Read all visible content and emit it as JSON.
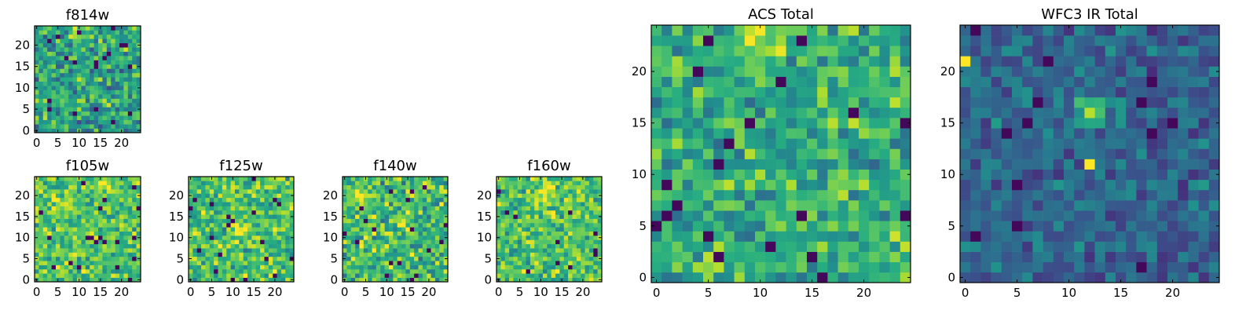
{
  "chart_data": [
    {
      "type": "heatmap",
      "title": "f814w",
      "colormap": "viridis",
      "grid_size": [
        25,
        25
      ],
      "xlim": [
        -0.5,
        24.5
      ],
      "ylim": [
        -0.5,
        24.5
      ],
      "xticks": [
        0,
        5,
        10,
        15,
        20
      ],
      "yticks": [
        0,
        5,
        10,
        15,
        20
      ],
      "seed": 11,
      "base": 0.58,
      "spread": 0.36,
      "hotspots": [
        {
          "x": 10,
          "y": 23,
          "r": 2,
          "amp": 0.3
        }
      ]
    },
    {
      "type": "heatmap",
      "title": "f105w",
      "colormap": "viridis",
      "grid_size": [
        25,
        25
      ],
      "xlim": [
        -0.5,
        24.5
      ],
      "ylim": [
        -0.5,
        24.5
      ],
      "xticks": [
        0,
        5,
        10,
        15,
        20
      ],
      "yticks": [
        0,
        5,
        10,
        15,
        20
      ],
      "seed": 23,
      "base": 0.72,
      "spread": 0.3,
      "hotspots": [
        {
          "x": 5,
          "y": 18,
          "r": 3,
          "amp": 0.2
        },
        {
          "x": 15,
          "y": 23,
          "r": 2,
          "amp": 0.2
        }
      ]
    },
    {
      "type": "heatmap",
      "title": "f125w",
      "colormap": "viridis",
      "grid_size": [
        25,
        25
      ],
      "xlim": [
        -0.5,
        24.5
      ],
      "ylim": [
        -0.5,
        24.5
      ],
      "xticks": [
        0,
        5,
        10,
        15,
        20
      ],
      "yticks": [
        0,
        5,
        10,
        15,
        20
      ],
      "seed": 37,
      "base": 0.7,
      "spread": 0.33,
      "hotspots": [
        {
          "x": 12,
          "y": 12,
          "r": 3,
          "amp": 0.18
        }
      ]
    },
    {
      "type": "heatmap",
      "title": "f140w",
      "colormap": "viridis",
      "grid_size": [
        25,
        25
      ],
      "xlim": [
        -0.5,
        24.5
      ],
      "ylim": [
        -0.5,
        24.5
      ],
      "xticks": [
        0,
        5,
        10,
        15,
        20
      ],
      "yticks": [
        0,
        5,
        10,
        15,
        20
      ],
      "seed": 41,
      "base": 0.68,
      "spread": 0.36,
      "hotspots": [
        {
          "x": 3,
          "y": 20,
          "r": 3,
          "amp": 0.2
        },
        {
          "x": 14,
          "y": 13,
          "r": 2,
          "amp": 0.2
        }
      ]
    },
    {
      "type": "heatmap",
      "title": "f160w",
      "colormap": "viridis",
      "grid_size": [
        25,
        25
      ],
      "xlim": [
        -0.5,
        24.5
      ],
      "ylim": [
        -0.5,
        24.5
      ],
      "xticks": [
        0,
        5,
        10,
        15,
        20
      ],
      "yticks": [
        0,
        5,
        10,
        15,
        20
      ],
      "seed": 53,
      "base": 0.72,
      "spread": 0.32,
      "hotspots": [
        {
          "x": 11,
          "y": 20,
          "r": 3,
          "amp": 0.2
        }
      ]
    },
    {
      "type": "heatmap",
      "title": "ACS Total",
      "colormap": "viridis",
      "grid_size": [
        25,
        25
      ],
      "xlim": [
        -0.5,
        24.5
      ],
      "ylim": [
        -0.5,
        24.5
      ],
      "xticks": [
        0,
        5,
        10,
        15,
        20
      ],
      "yticks": [
        0,
        5,
        10,
        15,
        20
      ],
      "seed": 67,
      "base": 0.63,
      "spread": 0.3,
      "hotspots": [
        {
          "x": 10,
          "y": 23,
          "r": 2,
          "amp": 0.3
        },
        {
          "x": 24,
          "y": 3,
          "r": 1,
          "amp": 0.3
        }
      ]
    },
    {
      "type": "heatmap",
      "title": "WFC3 IR Total",
      "colormap": "viridis",
      "grid_size": [
        25,
        25
      ],
      "xlim": [
        -0.5,
        24.5
      ],
      "ylim": [
        -0.5,
        24.5
      ],
      "xticks": [
        0,
        5,
        10,
        15,
        20
      ],
      "yticks": [
        0,
        5,
        10,
        15,
        20
      ],
      "seed": 79,
      "base": 0.33,
      "spread": 0.22,
      "hotspots": [
        {
          "x": 12,
          "y": 16,
          "r": 1,
          "amp": 0.55
        },
        {
          "x": 12,
          "y": 11,
          "r": 0,
          "amp": 0.55
        },
        {
          "x": 0,
          "y": 21,
          "r": 0,
          "amp": 0.6
        }
      ]
    }
  ]
}
